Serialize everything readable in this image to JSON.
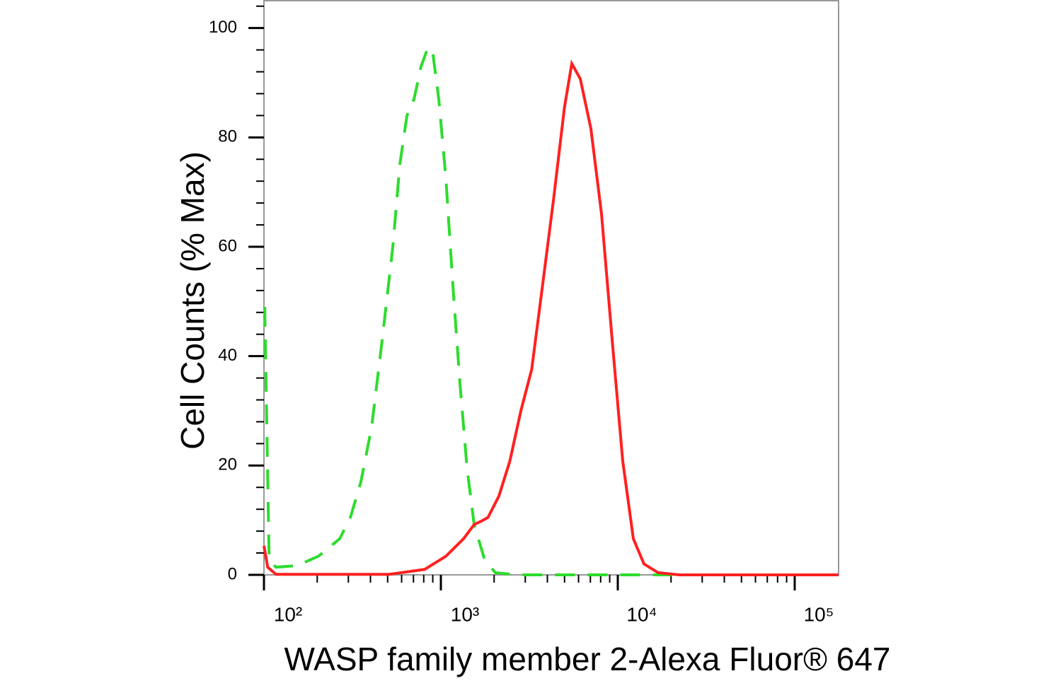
{
  "chart_data": {
    "type": "line",
    "xlabel": "WASP family member 2-Alexa Fluor® 647",
    "ylabel": "Cell Counts (% Max)",
    "xscale": "log",
    "xlim": [
      100,
      177000
    ],
    "ylim": [
      0,
      105
    ],
    "xticks": [
      {
        "value": 100,
        "label": "10²"
      },
      {
        "value": 1000,
        "label": "10³"
      },
      {
        "value": 10000,
        "label": "10⁴"
      },
      {
        "value": 100000,
        "label": "10⁵"
      }
    ],
    "xminorticks": [
      200,
      300,
      400,
      500,
      600,
      700,
      800,
      900,
      2000,
      3000,
      4000,
      5000,
      6000,
      7000,
      8000,
      9000,
      20000,
      30000,
      40000,
      50000,
      60000,
      70000,
      80000,
      90000
    ],
    "yticks": [
      0,
      20,
      40,
      60,
      80,
      100
    ],
    "yminorticks": [
      4,
      8,
      12,
      16,
      24,
      28,
      32,
      36,
      44,
      48,
      52,
      56,
      64,
      68,
      72,
      76,
      84,
      88,
      92,
      96,
      104
    ],
    "series": [
      {
        "color": "#2ddc2d",
        "linestyle": "dashed",
        "x": [
          101,
          107,
          117,
          154,
          203,
          268,
          308,
          353,
          406,
          466,
          535,
          586,
          643,
          705,
          773,
          847,
          904,
          973,
          1067,
          1169,
          1282,
          1406,
          1542,
          1770,
          2032,
          2679,
          177000
        ],
        "values": [
          49,
          2.7,
          1.4,
          1.7,
          3.4,
          6.6,
          10.5,
          17,
          27,
          43,
          60,
          75,
          84,
          87,
          93,
          96.5,
          95,
          87,
          72.6,
          53,
          35,
          19.5,
          9.2,
          2.7,
          0.4,
          0,
          0
        ]
      },
      {
        "color": "#ff2020",
        "linestyle": "solid",
        "x": [
          100,
          105,
          117,
          511,
          809,
          1067,
          1343,
          1542,
          1687,
          1846,
          2128,
          2454,
          2828,
          3262,
          3758,
          4335,
          4996,
          5495,
          6138,
          7047,
          8091,
          9290,
          10667,
          12246,
          14060,
          16904,
          22284,
          177000
        ],
        "values": [
          5.3,
          1.4,
          0.1,
          0.1,
          1,
          3.4,
          6.6,
          9.2,
          9.8,
          10.5,
          14.4,
          20.8,
          29.9,
          37.6,
          53,
          68.7,
          85.5,
          93.5,
          90.7,
          81.6,
          66,
          43,
          20.8,
          6.6,
          2,
          0.4,
          0,
          0
        ]
      }
    ]
  }
}
